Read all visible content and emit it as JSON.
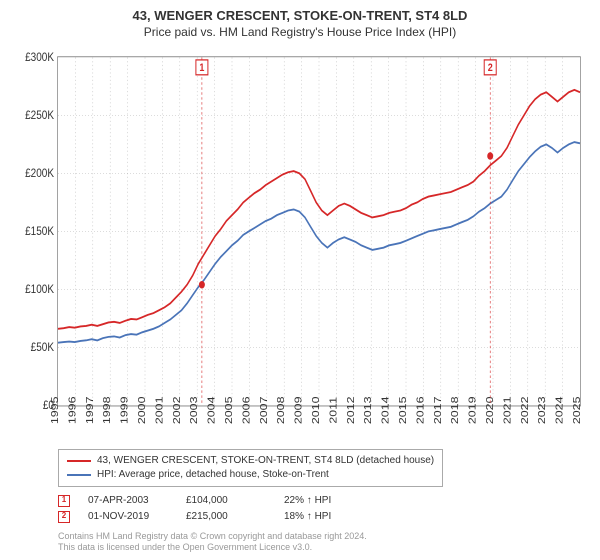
{
  "title": "43, WENGER CRESCENT, STOKE-ON-TRENT, ST4 8LD",
  "subtitle": "Price paid vs. HM Land Registry's House Price Index (HPI)",
  "chart": {
    "type": "line",
    "ylim": [
      0,
      300000
    ],
    "ytick_step": 50000,
    "ytick_prefix": "£",
    "ytick_suffix": "K",
    "xyears": [
      1995,
      1996,
      1997,
      1998,
      1999,
      2000,
      2001,
      2002,
      2003,
      2004,
      2005,
      2006,
      2007,
      2008,
      2009,
      2010,
      2011,
      2012,
      2013,
      2014,
      2015,
      2016,
      2017,
      2018,
      2019,
      2020,
      2021,
      2022,
      2023,
      2024,
      2025
    ],
    "background_color": "#ffffff",
    "grid_color": "#999999",
    "series": [
      {
        "name": "43, WENGER CRESCENT, STOKE-ON-TRENT, ST4 8LD (detached house)",
        "color": "#d62728",
        "line_width": 1.5,
        "values": [
          66000,
          66500,
          67500,
          67000,
          68000,
          68500,
          69500,
          68500,
          70000,
          71500,
          72000,
          71000,
          73000,
          74500,
          74000,
          76000,
          78000,
          79500,
          82000,
          84500,
          88000,
          93000,
          98000,
          104000,
          112000,
          122000,
          130000,
          138000,
          146000,
          152000,
          159000,
          164000,
          169000,
          175000,
          179000,
          183000,
          186000,
          190000,
          193000,
          196000,
          199000,
          201000,
          202000,
          200000,
          195000,
          185000,
          175000,
          168000,
          164000,
          168000,
          172000,
          174000,
          172000,
          169000,
          166000,
          164000,
          162000,
          163000,
          164000,
          166000,
          167000,
          168000,
          170000,
          173000,
          175000,
          178000,
          180000,
          181000,
          182000,
          183000,
          184000,
          186000,
          188000,
          190000,
          193000,
          198000,
          202000,
          207000,
          211000,
          215000,
          222000,
          232000,
          242000,
          250000,
          258000,
          264000,
          268000,
          270000,
          266000,
          262000,
          266000,
          270000,
          272000,
          270000
        ]
      },
      {
        "name": "HPI: Average price, detached house, Stoke-on-Trent",
        "color": "#4a74b8",
        "line_width": 1.5,
        "values": [
          54000,
          54500,
          55000,
          54500,
          55500,
          56000,
          57000,
          56000,
          58000,
          59000,
          59500,
          58500,
          60500,
          61500,
          61000,
          63000,
          64500,
          66000,
          68000,
          71000,
          74000,
          78000,
          82000,
          88000,
          95000,
          102000,
          108000,
          115000,
          122000,
          128000,
          133000,
          138000,
          142000,
          147000,
          150000,
          153000,
          156000,
          159000,
          161000,
          164000,
          166000,
          168000,
          169000,
          167000,
          162000,
          154000,
          146000,
          140000,
          136000,
          140000,
          143000,
          145000,
          143000,
          141000,
          138000,
          136000,
          134000,
          135000,
          136000,
          138000,
          139000,
          140000,
          142000,
          144000,
          146000,
          148000,
          150000,
          151000,
          152000,
          153000,
          154000,
          156000,
          158000,
          160000,
          163000,
          167000,
          170000,
          174000,
          177000,
          180000,
          186000,
          194000,
          202000,
          208000,
          214000,
          219000,
          223000,
          225000,
          222000,
          218000,
          222000,
          225000,
          227000,
          226000
        ]
      }
    ],
    "sale_markers": [
      {
        "id": "1",
        "year": 2003.27,
        "price": 104000
      },
      {
        "id": "2",
        "year": 2019.84,
        "price": 215000
      }
    ]
  },
  "legend": {
    "items": [
      {
        "color": "#d62728",
        "label": "43, WENGER CRESCENT, STOKE-ON-TRENT, ST4 8LD (detached house)"
      },
      {
        "color": "#4a74b8",
        "label": "HPI: Average price, detached house, Stoke-on-Trent"
      }
    ]
  },
  "data_table": {
    "rows": [
      {
        "marker": "1",
        "date": "07-APR-2003",
        "price": "£104,000",
        "delta": "22% ↑ HPI"
      },
      {
        "marker": "2",
        "date": "01-NOV-2019",
        "price": "£215,000",
        "delta": "18% ↑ HPI"
      }
    ]
  },
  "footnote_line1": "Contains HM Land Registry data © Crown copyright and database right 2024.",
  "footnote_line2": "This data is licensed under the Open Government Licence v3.0."
}
